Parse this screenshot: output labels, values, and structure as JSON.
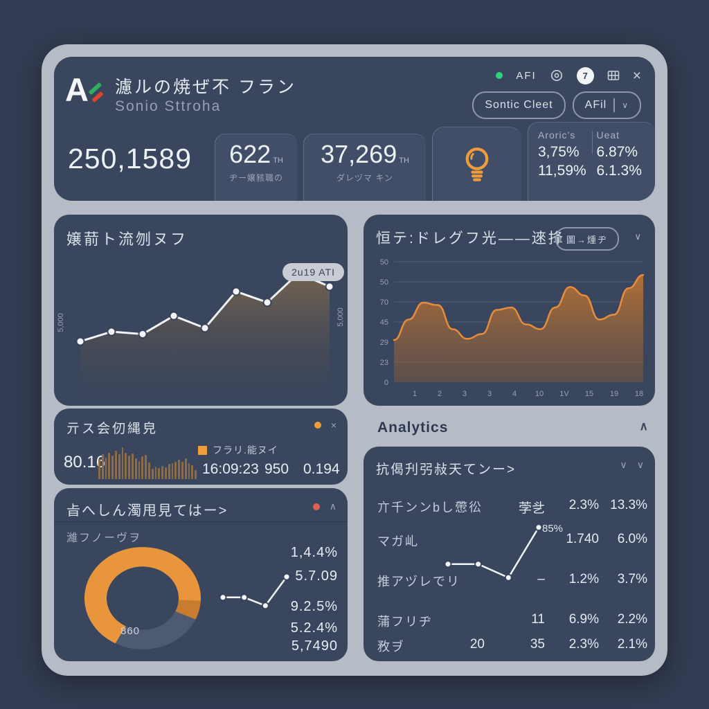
{
  "window": {
    "status": {
      "label": "AFI",
      "dot_color": "#2fd07e"
    },
    "badge": "7",
    "buttons": [
      {
        "label": "Sontic Cleet"
      },
      {
        "label": "AFil"
      }
    ]
  },
  "header": {
    "title": "濾ルの焼ぜ不 フラン",
    "subtitle": "Sonio Sttroha",
    "kpis": [
      {
        "value": "250,1589"
      },
      {
        "value": "622",
        "unit": "TH",
        "label": "ヂー嬢豥職の"
      },
      {
        "value": "37,269",
        "unit": "TH",
        "label": "ダレヅマ キン"
      }
    ],
    "stats": {
      "columns": [
        "Aroric's",
        "Ueat"
      ],
      "rows": [
        [
          "3,75%",
          "6.87%"
        ],
        [
          "11,59%",
          "6.1.3%"
        ]
      ]
    }
  },
  "trend_card": {
    "title": "嬢葥ト流刎ヌフ",
    "tooltip": "2u19 ATI",
    "axis_label_left": "5,000",
    "axis_label_right": "5,000"
  },
  "wave_card": {
    "title": "恒テ:ドレグフ光――逨捀",
    "filter_button": "圖→煄ヂ"
  },
  "spark_card": {
    "title": "亓ス会仞縄皃",
    "value": "80.16",
    "legend": "フラリ.能ヌイ",
    "time": "16:09:23",
    "count": "950",
    "ratio": "0.194"
  },
  "donut_card": {
    "title": "㫖へしん濁甩見てはー>",
    "subtitle": "濰フノーヴヲ",
    "center_label": "860",
    "values": [
      "1,4.4%",
      "5.7.09",
      "9.2.5%",
      "5.2.4%",
      "5,7490"
    ]
  },
  "analytics": {
    "section_title": "Analytics",
    "card_title": "抗偈刋弜敊天てンー>",
    "annotation": "85%",
    "table": {
      "rows": [
        {
          "label": "亣千ンンbし慸彸",
          "c1": "",
          "c2": "茡乧",
          "c3": "2.3%",
          "c4": "13.3%"
        },
        {
          "label": "マガ乢",
          "c1": "",
          "c2": "",
          "c3": "1.740",
          "c4": "6.0%"
        },
        {
          "label": "推アヅレでリ",
          "c1": "",
          "c2": "–",
          "c3": "1.2%",
          "c4": "3.7%"
        },
        {
          "label": "蒲フリヂ",
          "c1": "",
          "c2": "11",
          "c3": "6.9%",
          "c4": "2.2%"
        },
        {
          "label": "敄ヺ",
          "c1": "20",
          "c2": "35",
          "c3": "2.3%",
          "c4": "2.1%"
        }
      ]
    }
  },
  "colors": {
    "background": "#333c52",
    "panel": "#b6bcc6",
    "card": "#3a465e",
    "subcard": "#424e68",
    "accent_orange": "#e9953c",
    "status_green": "#2fd07e",
    "red_dot": "#e0604f",
    "donut_slate": "#4d5a72"
  },
  "chart_data": [
    {
      "id": "main-line",
      "type": "line",
      "x": [
        1,
        2,
        3,
        4,
        5,
        6,
        7,
        8,
        9
      ],
      "values": [
        38,
        46,
        44,
        59,
        49,
        79,
        70,
        94,
        83
      ],
      "line_color": "#f2f4f7",
      "fill_top": "rgba(128,106,78,0.85)",
      "fill_bottom": "rgba(62,64,78,0.15)",
      "tooltip": "2u19 ATI",
      "legend_position": "none",
      "grid": false
    },
    {
      "id": "wave-area",
      "type": "area",
      "values": [
        35,
        52,
        66,
        64,
        44,
        36,
        40,
        60,
        62,
        48,
        44,
        62,
        79,
        72,
        52,
        56,
        78,
        89
      ],
      "y_ticks": [
        "50",
        "50",
        "70",
        "45",
        "29",
        "23",
        "0"
      ],
      "x_ticks": [
        "1",
        "2",
        "3",
        "3",
        "4",
        "10",
        "1V",
        "15",
        "19",
        "18"
      ],
      "ylim": [
        0,
        100
      ],
      "grid": true,
      "stroke": "#e68c3c",
      "fill_top": "rgba(186,114,52,0.93)",
      "fill_bottom": "rgba(120,87,62,0.55)",
      "grid_color": "rgba(150,162,184,0.28)"
    },
    {
      "id": "bar-spark",
      "type": "bar",
      "color": "#8d6c45",
      "values": [
        60,
        75,
        65,
        80,
        70,
        85,
        75,
        95,
        80,
        70,
        78,
        62,
        55,
        68,
        72,
        50,
        32,
        38,
        34,
        40,
        35,
        45,
        48,
        52,
        58,
        52,
        62,
        48,
        42,
        28
      ]
    },
    {
      "id": "donut",
      "type": "pie",
      "segments": [
        {
          "name": "orange-a",
          "color": "#e9953c",
          "pct": 28
        },
        {
          "name": "amber",
          "color": "#c87c30",
          "pct": 6
        },
        {
          "name": "slate",
          "color": "#4d5a72",
          "pct": 26
        },
        {
          "name": "orange-b",
          "color": "#e9953c",
          "pct": 40
        }
      ],
      "center_label": "860"
    },
    {
      "id": "mini-trend",
      "type": "line",
      "values": [
        35,
        35,
        12,
        92
      ],
      "line_color": "#f2f4f7"
    },
    {
      "id": "analytics-trend",
      "type": "line",
      "values": [
        26,
        26,
        1,
        94
      ],
      "line_color": "#f2f4f7",
      "annotation": "85%"
    }
  ]
}
